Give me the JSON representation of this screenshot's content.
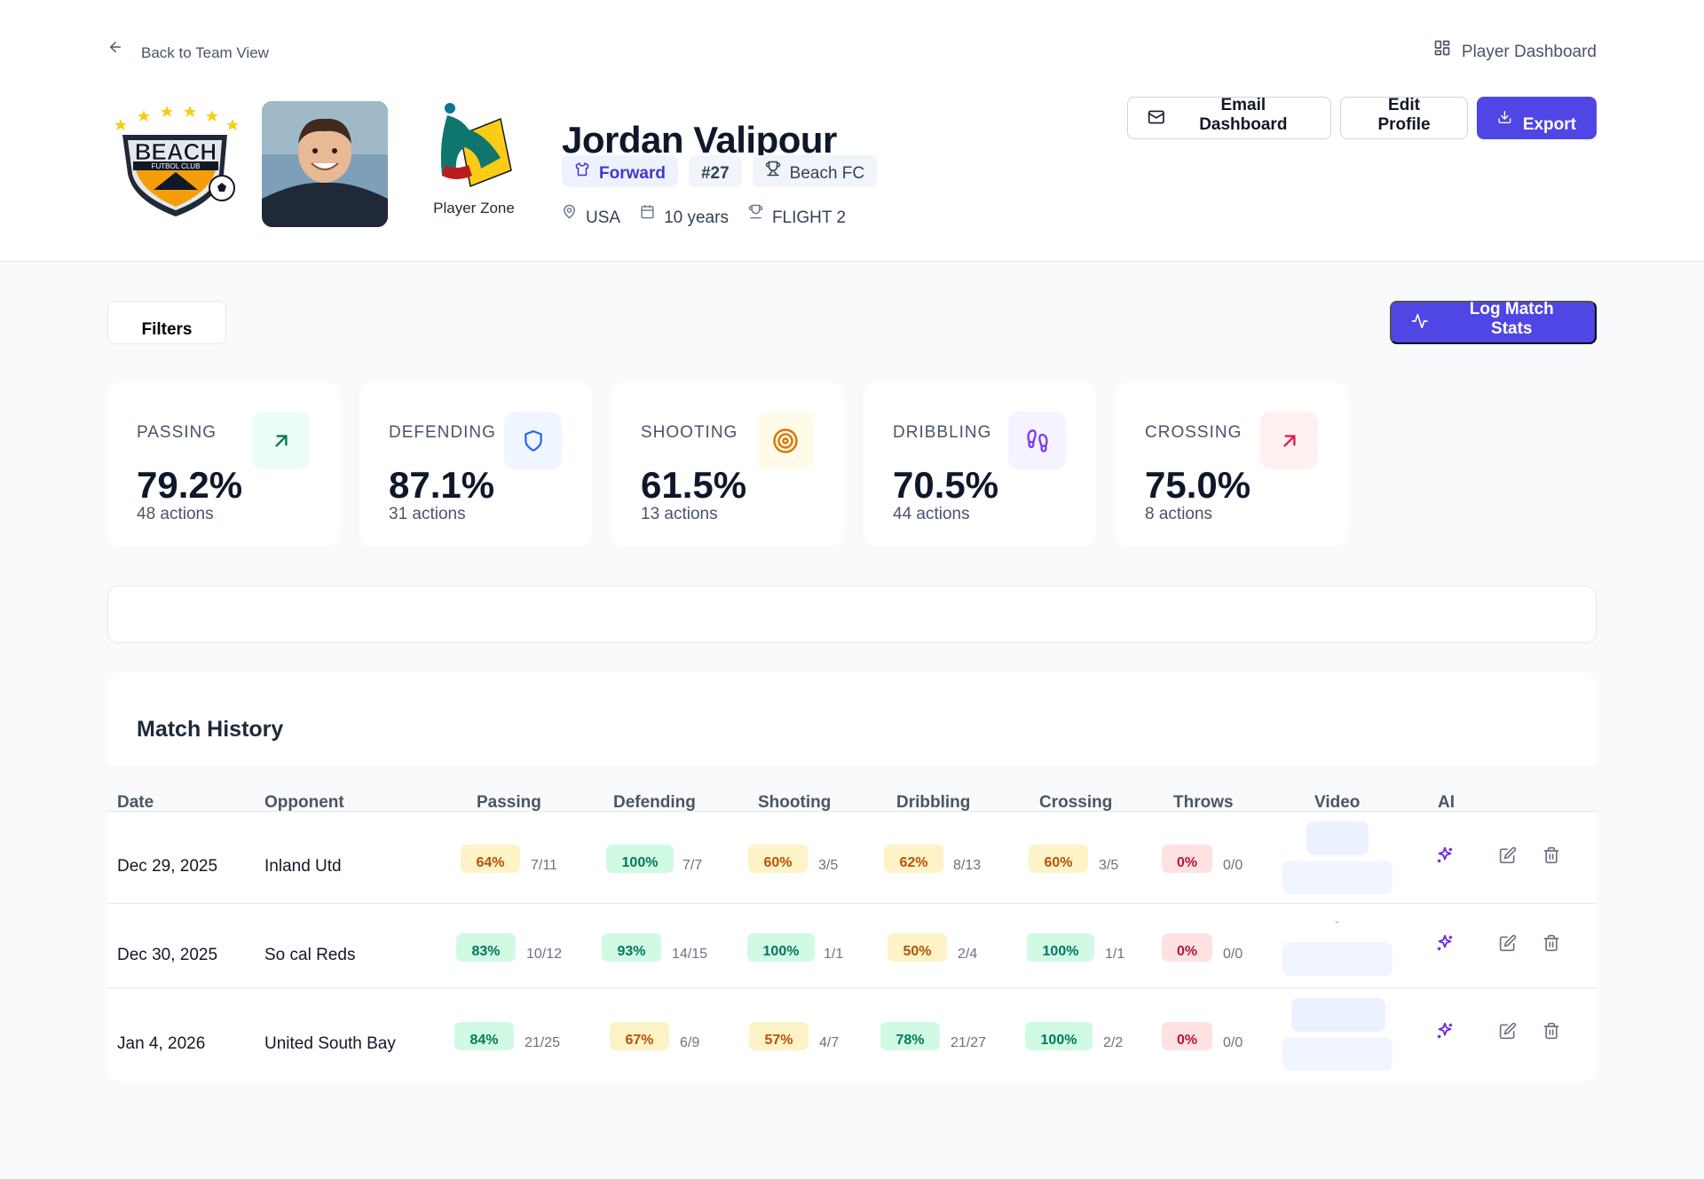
{
  "nav": {
    "back_label": "Back to Team View",
    "dashboard_label": "Player Dashboard"
  },
  "logos": {
    "club_text": "BEACH",
    "club_sub": "FUTBOL CLUB",
    "player_zone": "Player Zone"
  },
  "player": {
    "name": "Jordan Valipour",
    "position": "Forward",
    "number": "#27",
    "team": "Beach FC",
    "country": "USA",
    "age": "10 years",
    "flight": "FLIGHT 2"
  },
  "actions": {
    "email": "Email Dashboard",
    "edit": "Edit Profile",
    "export": "Export"
  },
  "toolbar": {
    "filters": "Filters",
    "log": "Log Match Stats"
  },
  "stats": [
    {
      "label": "PASSING",
      "value": "79.2%",
      "actions": "48 actions",
      "icon": "arrow-up-right-icon",
      "icon_bg": "#ecfdf5",
      "icon_color": "#047857"
    },
    {
      "label": "DEFENDING",
      "value": "87.1%",
      "actions": "31 actions",
      "icon": "shield-icon",
      "icon_bg": "#eff6ff",
      "icon_color": "#2563eb"
    },
    {
      "label": "SHOOTING",
      "value": "61.5%",
      "actions": "13 actions",
      "icon": "target-icon",
      "icon_bg": "#fffbeb",
      "icon_color": "#d97706"
    },
    {
      "label": "DRIBBLING",
      "value": "70.5%",
      "actions": "44 actions",
      "icon": "footprints-icon",
      "icon_bg": "#f5f3ff",
      "icon_color": "#7c3aed"
    },
    {
      "label": "CROSSING",
      "value": "75.0%",
      "actions": "8 actions",
      "icon": "arrow-up-right-icon",
      "icon_bg": "#fff1f2",
      "icon_color": "#e11d48"
    }
  ],
  "history": {
    "title": "Match History",
    "columns": [
      "Date",
      "Opponent",
      "Passing",
      "Defending",
      "Shooting",
      "Dribbling",
      "Crossing",
      "Throws",
      "Video",
      "AI"
    ],
    "rows": [
      {
        "date": "Dec 29, 2025",
        "opponent": "Inland Utd",
        "stats": [
          {
            "pct": "64%",
            "ratio": "7/11",
            "tone": "yellow"
          },
          {
            "pct": "100%",
            "ratio": "7/7",
            "tone": "green"
          },
          {
            "pct": "60%",
            "ratio": "3/5",
            "tone": "yellow"
          },
          {
            "pct": "62%",
            "ratio": "8/13",
            "tone": "yellow"
          },
          {
            "pct": "60%",
            "ratio": "3/5",
            "tone": "yellow"
          },
          {
            "pct": "0%",
            "ratio": "0/0",
            "tone": "red"
          }
        ],
        "video": ""
      },
      {
        "date": "Dec 30, 2025",
        "opponent": "So cal Reds",
        "stats": [
          {
            "pct": "83%",
            "ratio": "10/12",
            "tone": "green"
          },
          {
            "pct": "93%",
            "ratio": "14/15",
            "tone": "green"
          },
          {
            "pct": "100%",
            "ratio": "1/1",
            "tone": "green"
          },
          {
            "pct": "50%",
            "ratio": "2/4",
            "tone": "yellow"
          },
          {
            "pct": "100%",
            "ratio": "1/1",
            "tone": "green"
          },
          {
            "pct": "0%",
            "ratio": "0/0",
            "tone": "red"
          }
        ],
        "video": "-"
      },
      {
        "date": "Jan 4, 2026",
        "opponent": "United South Bay",
        "stats": [
          {
            "pct": "84%",
            "ratio": "21/25",
            "tone": "green"
          },
          {
            "pct": "67%",
            "ratio": "6/9",
            "tone": "yellow"
          },
          {
            "pct": "57%",
            "ratio": "4/7",
            "tone": "yellow"
          },
          {
            "pct": "78%",
            "ratio": "21/27",
            "tone": "green"
          },
          {
            "pct": "100%",
            "ratio": "2/2",
            "tone": "green"
          },
          {
            "pct": "0%",
            "ratio": "0/0",
            "tone": "red"
          }
        ],
        "video": ""
      }
    ]
  }
}
